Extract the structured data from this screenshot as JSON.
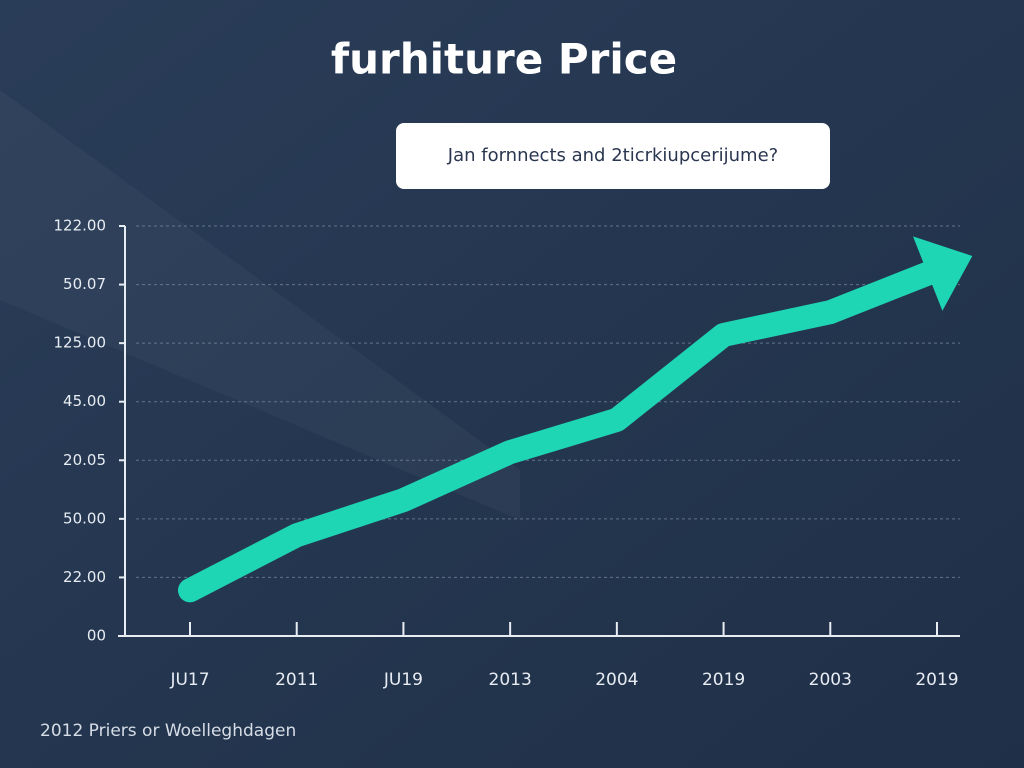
{
  "chart_data": {
    "type": "line",
    "title": "furhiture Price",
    "subtitle": "Jan fornnects and 2ticrkiupcerijume?",
    "footer": "2012 Priers or Woelleghdagen",
    "categories": [
      "JU17",
      "2011",
      "JU19",
      "2013",
      "2004",
      "2019",
      "2003",
      "2019"
    ],
    "series": [
      {
        "name": "Price",
        "color": "#1ed6b3",
        "values": [
          0.78,
          1.72,
          2.32,
          3.14,
          3.69,
          5.14,
          5.53,
          6.25
        ]
      }
    ],
    "ylim": [
      0,
      7
    ],
    "yticks": [
      {
        "value": 0,
        "label": "00"
      },
      {
        "value": 1,
        "label": "22.00"
      },
      {
        "value": 2,
        "label": "50.00"
      },
      {
        "value": 3,
        "label": "20.05"
      },
      {
        "value": 4,
        "label": "45.00"
      },
      {
        "value": 5,
        "label": "125.00"
      },
      {
        "value": 6,
        "label": "50.07"
      },
      {
        "value": 7,
        "label": "122.00"
      }
    ],
    "grid": true
  }
}
